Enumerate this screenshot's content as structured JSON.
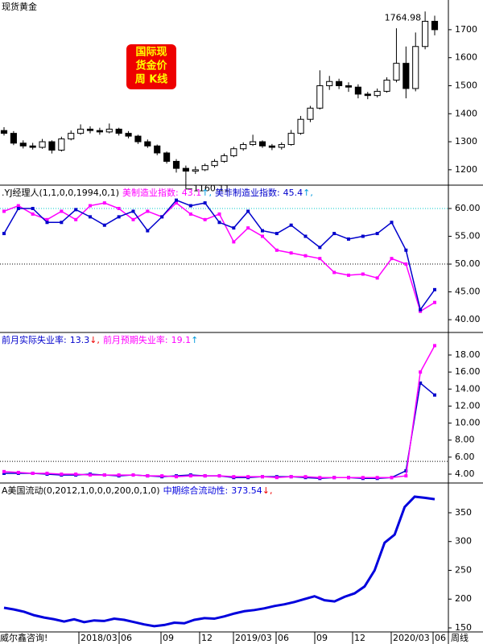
{
  "chart_data": [
    {
      "type": "candlestick",
      "title": "现货黄金",
      "annotations": [
        "1764.98",
        "1160.11"
      ],
      "label_box": [
        "国际现",
        "货金价",
        "周 K线"
      ],
      "ylim": [
        1145,
        1806
      ],
      "yticks": [
        1200,
        1300,
        1400,
        1500,
        1600,
        1700
      ],
      "candles": [
        [
          1340,
          1352,
          1322,
          1330
        ],
        [
          1330,
          1338,
          1288,
          1295
        ],
        [
          1295,
          1305,
          1276,
          1285
        ],
        [
          1285,
          1296,
          1272,
          1280
        ],
        [
          1280,
          1310,
          1275,
          1300
        ],
        [
          1300,
          1305,
          1258,
          1270
        ],
        [
          1270,
          1318,
          1265,
          1310
        ],
        [
          1310,
          1340,
          1305,
          1330
        ],
        [
          1330,
          1362,
          1325,
          1345
        ],
        [
          1345,
          1355,
          1330,
          1340
        ],
        [
          1340,
          1350,
          1325,
          1335
        ],
        [
          1335,
          1365,
          1330,
          1345
        ],
        [
          1345,
          1350,
          1322,
          1330
        ],
        [
          1330,
          1338,
          1312,
          1320
        ],
        [
          1320,
          1325,
          1292,
          1300
        ],
        [
          1300,
          1308,
          1278,
          1285
        ],
        [
          1285,
          1290,
          1252,
          1260
        ],
        [
          1260,
          1265,
          1222,
          1230
        ],
        [
          1230,
          1238,
          1190,
          1205
        ],
        [
          1205,
          1215,
          1160.11,
          1195
        ],
        [
          1195,
          1212,
          1185,
          1200
        ],
        [
          1200,
          1222,
          1195,
          1215
        ],
        [
          1215,
          1238,
          1208,
          1230
        ],
        [
          1230,
          1258,
          1225,
          1250
        ],
        [
          1250,
          1282,
          1245,
          1275
        ],
        [
          1275,
          1298,
          1268,
          1290
        ],
        [
          1290,
          1325,
          1285,
          1300
        ],
        [
          1300,
          1305,
          1278,
          1285
        ],
        [
          1285,
          1292,
          1270,
          1280
        ],
        [
          1280,
          1298,
          1272,
          1290
        ],
        [
          1290,
          1342,
          1286,
          1330
        ],
        [
          1330,
          1392,
          1325,
          1380
        ],
        [
          1380,
          1428,
          1370,
          1420
        ],
        [
          1420,
          1555,
          1415,
          1500
        ],
        [
          1500,
          1535,
          1485,
          1515
        ],
        [
          1515,
          1525,
          1488,
          1500
        ],
        [
          1500,
          1512,
          1478,
          1495
        ],
        [
          1495,
          1505,
          1455,
          1470
        ],
        [
          1470,
          1478,
          1452,
          1465
        ],
        [
          1465,
          1490,
          1458,
          1480
        ],
        [
          1480,
          1530,
          1475,
          1520
        ],
        [
          1520,
          1705,
          1512,
          1580
        ],
        [
          1580,
          1640,
          1455,
          1490
        ],
        [
          1490,
          1690,
          1480,
          1640
        ],
        [
          1640,
          1764.98,
          1630,
          1730
        ],
        [
          1730,
          1750,
          1680,
          1700
        ]
      ]
    },
    {
      "type": "line",
      "title": ".YJ经理人(1,1,0,0,1994,0,1)",
      "ylim": [
        37.7,
        64.2
      ],
      "yticks": [
        {
          "value": 40,
          "label": "40.00"
        },
        {
          "value": 45,
          "label": "45.00"
        },
        {
          "value": 50,
          "label": "50.00"
        },
        {
          "value": 55,
          "label": "55.00"
        },
        {
          "value": 60,
          "label": "60.00"
        }
      ],
      "reference_lines": [
        {
          "value": 60,
          "color": "#00c8c8"
        },
        {
          "value": 50,
          "color": "#000000"
        }
      ],
      "series": [
        {
          "name": "美制造业指数:",
          "color": "#ff00ff",
          "latest_label": "43.1",
          "trend": "↑,",
          "values": [
            59.5,
            60.5,
            59,
            58,
            59.5,
            58,
            60.5,
            61,
            60,
            58,
            59.5,
            58.5,
            61,
            59,
            58,
            59,
            54,
            56.5,
            55,
            52.5,
            52,
            51.5,
            51,
            48.5,
            48,
            48.2,
            47.5,
            51,
            50,
            41.5,
            43.1
          ]
        },
        {
          "name": "美非制造业指数:",
          "color": "#0000cc",
          "latest_label": "45.4",
          "trend": "↑,",
          "values": [
            55.5,
            60,
            60,
            57.5,
            57.5,
            59.8,
            58.5,
            57,
            58.5,
            59.5,
            56,
            58.5,
            61.5,
            60.5,
            61,
            57.5,
            56.5,
            59.5,
            56,
            55.5,
            57,
            55,
            53,
            55.5,
            54.5,
            55,
            55.5,
            57.5,
            52.5,
            41.8,
            45.4
          ]
        }
      ]
    },
    {
      "type": "line",
      "title": "",
      "ylim": [
        2.96,
        20.65
      ],
      "yticks": [
        {
          "value": 4,
          "label": "4.00"
        },
        {
          "value": 6,
          "label": "6.00"
        },
        {
          "value": 8,
          "label": "8.00"
        },
        {
          "value": 10,
          "label": "10.00"
        },
        {
          "value": 12,
          "label": "12.00"
        },
        {
          "value": 14,
          "label": "14.00"
        },
        {
          "value": 16,
          "label": "16.00"
        },
        {
          "value": 18,
          "label": "18.00"
        }
      ],
      "reference_lines": [
        {
          "value": 5.5,
          "color": "#000000"
        }
      ],
      "series": [
        {
          "name": "前月实际失业率:",
          "color": "#0000cc",
          "latest_label": "13.3",
          "trend": "↓,",
          "values": [
            4.1,
            4.1,
            4.1,
            4.0,
            3.9,
            3.9,
            4.0,
            3.9,
            3.8,
            3.9,
            3.8,
            3.7,
            3.8,
            3.9,
            3.8,
            3.8,
            3.6,
            3.6,
            3.7,
            3.7,
            3.7,
            3.6,
            3.5,
            3.6,
            3.6,
            3.5,
            3.5,
            3.6,
            4.4,
            14.7,
            13.3
          ]
        },
        {
          "name": "前月预期失业率:",
          "color": "#ff00ff",
          "latest_label": "19.1",
          "trend": "↑",
          "values": [
            4.3,
            4.2,
            4.1,
            4.1,
            4.0,
            4.0,
            3.9,
            3.9,
            3.9,
            3.9,
            3.8,
            3.8,
            3.7,
            3.8,
            3.8,
            3.8,
            3.7,
            3.7,
            3.7,
            3.6,
            3.7,
            3.7,
            3.6,
            3.6,
            3.6,
            3.6,
            3.6,
            3.6,
            3.8,
            16,
            19.1
          ]
        }
      ]
    },
    {
      "type": "line",
      "title": "A美国流动(0,2012,1,0,0,0,200,0,1,0)",
      "ylim": [
        143,
        401.7
      ],
      "yticks": [
        150,
        200,
        250,
        300,
        350
      ],
      "reference_lines": [],
      "series": [
        {
          "name": "中期综合流动性:",
          "color": "#0000dd",
          "latest_label": "373.54",
          "trend": "↓,",
          "values": [
            185,
            182,
            178,
            172,
            168,
            165,
            161,
            165,
            160,
            163,
            162,
            166,
            164,
            160,
            156,
            153,
            155,
            159,
            158,
            164,
            167,
            166,
            170,
            175,
            179,
            181,
            184,
            188,
            191,
            195,
            200,
            205,
            198,
            196,
            204,
            210,
            222,
            250,
            298,
            312,
            360,
            378,
            376,
            373.54
          ]
        }
      ]
    }
  ],
  "x_axis": {
    "labels": [
      "威尔鑫咨询!",
      "2018/03",
      "06",
      "09",
      "12",
      "2019/03",
      "06",
      "09",
      "12",
      "2020/03",
      "06",
      "周线"
    ]
  }
}
